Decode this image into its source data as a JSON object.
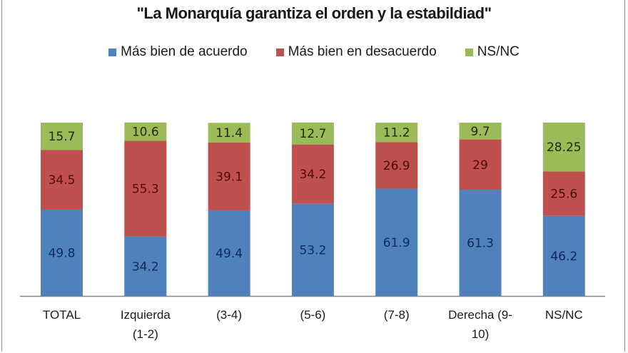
{
  "chart_data": {
    "type": "bar",
    "stacked": true,
    "title": "\"La Monarquía garantiza el orden y la estabildiad\"",
    "xlabel": "",
    "ylabel": "",
    "ylim": [
      0,
      100
    ],
    "grid": false,
    "legend_position": "top",
    "categories": [
      "TOTAL",
      "Izquierda (1-2)",
      "(3-4)",
      "(5-6)",
      "(7-8)",
      "Derecha (9-10)",
      "NS/NC"
    ],
    "category_lines": [
      [
        "TOTAL"
      ],
      [
        "Izquierda",
        "(1-2)"
      ],
      [
        "(3-4)"
      ],
      [
        "(5-6)"
      ],
      [
        "(7-8)"
      ],
      [
        "Derecha (9-",
        "10)"
      ],
      [
        "NS/NC"
      ]
    ],
    "series": [
      {
        "name": "Más bien de acuerdo",
        "color": "#4f81bd",
        "label_color": "#0f2a5a",
        "values": [
          49.8,
          34.2,
          49.4,
          53.2,
          61.9,
          61.3,
          46.2
        ],
        "labels": [
          "49.8",
          "34.2",
          "49.4",
          "53.2",
          "61.9",
          "61.3",
          "46.2"
        ]
      },
      {
        "name": "Más bien en desacuerdo",
        "color": "#c0504d",
        "label_color": "#4a0d0c",
        "values": [
          34.5,
          55.3,
          39.1,
          34.2,
          26.9,
          29,
          25.6
        ],
        "labels": [
          "34.5",
          "55.3",
          "39.1",
          "34.2",
          "26.9",
          "29",
          "25.6"
        ]
      },
      {
        "name": "NS/NC",
        "color": "#9bbb59",
        "label_color": "#1f2a0b",
        "values": [
          15.7,
          10.6,
          11.4,
          12.7,
          11.2,
          9.7,
          28.25
        ],
        "labels": [
          "15.7",
          "10.6",
          "11.4",
          "12.7",
          "11.2",
          "9.7",
          "28.25"
        ]
      }
    ]
  }
}
